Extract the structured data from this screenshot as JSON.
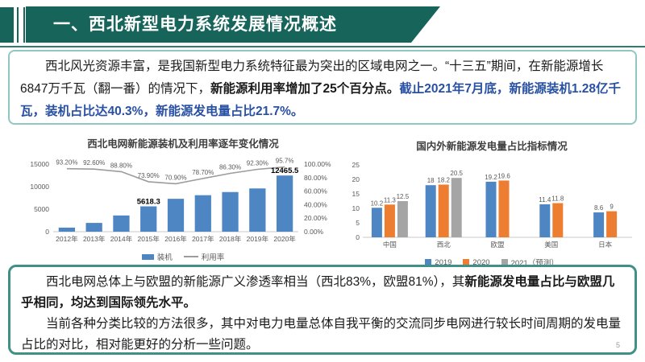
{
  "banner": {
    "title": "一、西北新型电力系统发展情况概述",
    "accent_color": "#17645A"
  },
  "intro": {
    "seg1": "　　西北风光资源丰富，是我国新型电力系统特征最为突出的区域电网之一。“十三五”期间，在新能源增长6847万千瓦（翻一番）的情况下，",
    "seg2": "新能源利用率增加了25个百分点。",
    "seg3": "截止2021年7月底，新能源装机1.28亿千瓦，装机占比达40.3%，新能源发电量占比21.7%。"
  },
  "chart_data": [
    {
      "type": "bar+line",
      "title": "西北电网新能源装机及利用率逐年变化情况",
      "categories": [
        "2012年",
        "2013年",
        "2014年",
        "2015年",
        "2016年",
        "2017年",
        "2018年",
        "2019年",
        "2020年"
      ],
      "series": [
        {
          "name": "装机",
          "type": "bar",
          "color": "#4E86C4",
          "values": [
            900,
            1950,
            3600,
            5618.3,
            7300,
            8100,
            8800,
            9600,
            12465.5
          ],
          "labels": [
            "",
            "",
            "",
            "5618.3",
            "",
            "",
            "",
            "",
            "12465.5"
          ]
        },
        {
          "name": "利用率",
          "type": "line",
          "color": "#9C9C9C",
          "axis": "right",
          "values": [
            93.2,
            92.6,
            88.8,
            73.9,
            70.9,
            78.7,
            86.3,
            92.3,
            95.7
          ],
          "labels": [
            "93.20%",
            "92.60%",
            "88.80%",
            "73.90%",
            "70.90%",
            "78.70%",
            "86.30%",
            "92.30%",
            "95.7%"
          ]
        }
      ],
      "left_axis": {
        "min": 0,
        "max": 15000,
        "ticks": [
          "0",
          "5000",
          "10000",
          "15000"
        ]
      },
      "right_axis": {
        "min": 0,
        "max": 100,
        "ticks": [
          "0.00%",
          "20.00%",
          "40.00%",
          "60.00%",
          "80.00%",
          "100.00%"
        ]
      },
      "legend_position": "bottom",
      "grid": false
    },
    {
      "type": "bar",
      "title": "国内外新能源发电量占比指标情况",
      "categories": [
        "中国",
        "西北",
        "欧盟",
        "美国",
        "日本"
      ],
      "series": [
        {
          "name": "2019",
          "color": "#4E86C4",
          "values": [
            10.2,
            18,
            19.2,
            11.4,
            8.6
          ],
          "labels": [
            "10.2",
            "18",
            "19.2",
            "11.4",
            "8.6"
          ]
        },
        {
          "name": "2020",
          "color": "#ED7D31",
          "values": [
            11.3,
            18.2,
            19.6,
            11.8,
            9
          ],
          "labels": [
            "11.3",
            "18.2",
            "19.6",
            "11.8",
            "9"
          ]
        },
        {
          "name": "2021（预测）",
          "color": "#A5A5A5",
          "values": [
            12.5,
            20.5,
            null,
            null,
            null
          ],
          "labels": [
            "12.5",
            "20.5",
            "",
            "",
            ""
          ]
        }
      ],
      "y_axis": {
        "min": 0,
        "max": 25,
        "ticks": [
          "0",
          "5",
          "10",
          "15",
          "20",
          "25"
        ]
      },
      "legend_position": "bottom",
      "grid": false
    }
  ],
  "summary": {
    "p1a": "　　西北电网总体上与欧盟的新能源广义渗透率相当（西北83%，欧盟81%），其",
    "p1b": "新能源发电量占比与欧盟几乎相同，均达到国际领先水平。",
    "p2": "　　当前各种分类比较的方法很多，其中对电力电量总体自我平衡的交流同步电网进行较长时间周期的发电量占比的对比，相对能更好的分析一些问题。"
  },
  "page_number": "5"
}
